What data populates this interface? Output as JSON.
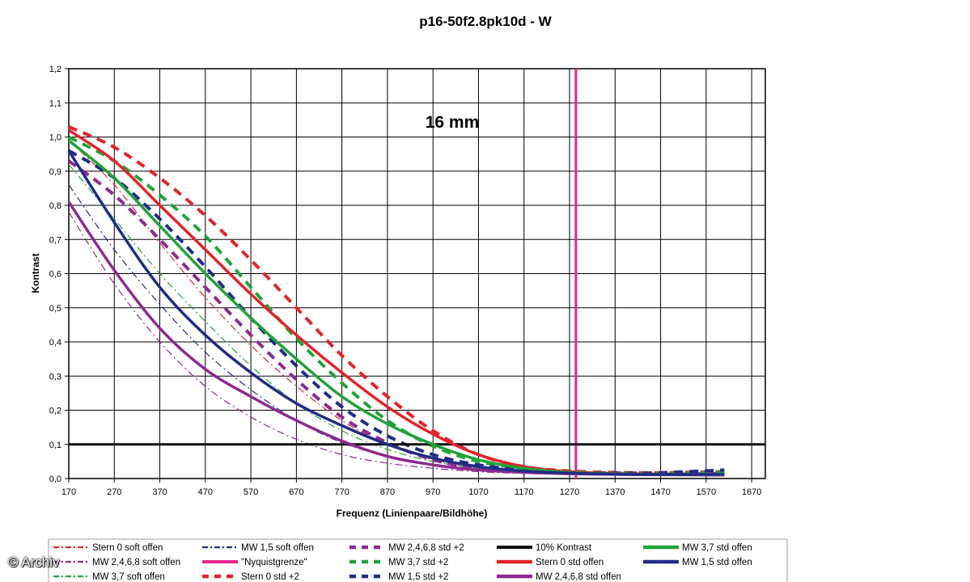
{
  "chart_data": {
    "type": "line",
    "title": "p16-50f2.8pk10d - W",
    "annotation": "16 mm",
    "xlabel": "Frequenz (Linienpaare/Bildhöhe)",
    "ylabel": "Kontrast",
    "xlim": [
      170,
      1700
    ],
    "ylim": [
      0,
      1.2
    ],
    "xticks": [
      170,
      270,
      370,
      470,
      570,
      670,
      770,
      870,
      970,
      1070,
      1170,
      1270,
      1370,
      1470,
      1570,
      1670
    ],
    "yticks": [
      "0,0",
      "0,1",
      "0,2",
      "0,3",
      "0,4",
      "0,5",
      "0,6",
      "0,7",
      "0,8",
      "0,9",
      "1,0",
      "1,1",
      "1,2"
    ],
    "grid": true,
    "legend_position": "bottom",
    "series": [
      {
        "name": "Stern 0 soft offen",
        "color": "#e0252b",
        "style": "dashdot",
        "width": 1.2,
        "x": [
          170,
          270,
          370,
          470,
          570,
          670,
          770,
          870,
          970,
          1070,
          1170,
          1270,
          1370,
          1470,
          1610
        ],
        "y": [
          0.99,
          0.86,
          0.69,
          0.53,
          0.39,
          0.27,
          0.17,
          0.1,
          0.055,
          0.03,
          0.02,
          0.015,
          0.012,
          0.01,
          0.01
        ]
      },
      {
        "name": "MW 2,4,6,8 soft offen",
        "color": "#8e2a91",
        "style": "dashdot",
        "width": 1.2,
        "x": [
          170,
          270,
          370,
          470,
          570,
          670,
          770,
          870,
          970,
          1070,
          1170,
          1270,
          1370,
          1470,
          1610
        ],
        "y": [
          0.78,
          0.57,
          0.4,
          0.27,
          0.18,
          0.115,
          0.07,
          0.045,
          0.03,
          0.02,
          0.015,
          0.012,
          0.01,
          0.01,
          0.01
        ]
      },
      {
        "name": "MW 3,7 soft offen",
        "color": "#22a33a",
        "style": "dashdot",
        "width": 1.2,
        "x": [
          170,
          270,
          370,
          470,
          570,
          670,
          770,
          870,
          970,
          1070,
          1170,
          1270,
          1370,
          1470,
          1610
        ],
        "y": [
          0.92,
          0.76,
          0.6,
          0.46,
          0.33,
          0.22,
          0.14,
          0.085,
          0.05,
          0.03,
          0.02,
          0.015,
          0.012,
          0.01,
          0.01
        ]
      },
      {
        "name": "MW 1,5 soft offen",
        "color": "#1f2d87",
        "style": "dashdot",
        "width": 1.2,
        "x": [
          170,
          270,
          370,
          470,
          570,
          670,
          770,
          870,
          970,
          1070,
          1170,
          1270,
          1370,
          1470,
          1610
        ],
        "y": [
          0.86,
          0.67,
          0.51,
          0.37,
          0.26,
          0.17,
          0.105,
          0.065,
          0.04,
          0.025,
          0.018,
          0.014,
          0.012,
          0.01,
          0.01
        ]
      },
      {
        "name": "\"Nyquistgrenze\"",
        "color": "#e5258f",
        "style": "solid",
        "width": 3,
        "x": [
          1284,
          1284
        ],
        "y": [
          0,
          1.2
        ]
      },
      {
        "name": "Stern 0 std +2",
        "color": "#e0252b",
        "style": "dash",
        "width": 4,
        "x": [
          170,
          270,
          370,
          470,
          570,
          670,
          770,
          870,
          970,
          1070,
          1170,
          1270,
          1370,
          1470,
          1610
        ],
        "y": [
          1.03,
          0.97,
          0.88,
          0.77,
          0.64,
          0.5,
          0.36,
          0.24,
          0.14,
          0.07,
          0.035,
          0.022,
          0.018,
          0.017,
          0.02
        ]
      },
      {
        "name": "MW 2,4,6,8 std +2",
        "color": "#8e2a91",
        "style": "dash",
        "width": 4,
        "x": [
          170,
          270,
          370,
          470,
          570,
          670,
          770,
          870,
          970,
          1070,
          1170,
          1270,
          1370,
          1470,
          1610
        ],
        "y": [
          0.93,
          0.83,
          0.7,
          0.56,
          0.42,
          0.29,
          0.18,
          0.105,
          0.055,
          0.03,
          0.02,
          0.015,
          0.013,
          0.012,
          0.015
        ]
      },
      {
        "name": "MW 3,7 std +2",
        "color": "#22a33a",
        "style": "dash",
        "width": 4,
        "x": [
          170,
          270,
          370,
          470,
          570,
          670,
          770,
          870,
          970,
          1070,
          1170,
          1270,
          1370,
          1470,
          1610
        ],
        "y": [
          1.0,
          0.93,
          0.83,
          0.71,
          0.56,
          0.41,
          0.28,
          0.17,
          0.095,
          0.05,
          0.03,
          0.02,
          0.016,
          0.015,
          0.018
        ]
      },
      {
        "name": "MW 1,5 std +2",
        "color": "#1f2d87",
        "style": "dash",
        "width": 4,
        "x": [
          170,
          270,
          370,
          470,
          570,
          670,
          770,
          870,
          970,
          1070,
          1170,
          1270,
          1370,
          1470,
          1610
        ],
        "y": [
          0.96,
          0.88,
          0.76,
          0.62,
          0.47,
          0.33,
          0.21,
          0.125,
          0.07,
          0.04,
          0.025,
          0.018,
          0.016,
          0.017,
          0.025
        ]
      },
      {
        "name": "10% Kontrast",
        "color": "#111111",
        "style": "solid",
        "width": 3,
        "x": [
          170,
          1700
        ],
        "y": [
          0.1,
          0.1
        ]
      },
      {
        "name": "Stern 0 std offen",
        "color": "#e0252b",
        "style": "solid",
        "width": 3.5,
        "x": [
          170,
          270,
          370,
          470,
          570,
          670,
          770,
          870,
          970,
          1070,
          1170,
          1270,
          1370,
          1470,
          1610
        ],
        "y": [
          1.02,
          0.93,
          0.8,
          0.67,
          0.54,
          0.42,
          0.31,
          0.21,
          0.13,
          0.07,
          0.035,
          0.02,
          0.015,
          0.013,
          0.012
        ]
      },
      {
        "name": "MW 2,4,6,8 std offen",
        "color": "#8e2a91",
        "style": "solid",
        "width": 3.5,
        "x": [
          170,
          270,
          370,
          470,
          570,
          670,
          770,
          870,
          970,
          1070,
          1170,
          1270,
          1370,
          1470,
          1610
        ],
        "y": [
          0.81,
          0.61,
          0.44,
          0.32,
          0.24,
          0.17,
          0.11,
          0.065,
          0.04,
          0.025,
          0.018,
          0.014,
          0.012,
          0.011,
          0.01
        ]
      },
      {
        "name": "MW 3,7 std offen",
        "color": "#22a33a",
        "style": "solid",
        "width": 3.5,
        "x": [
          170,
          270,
          370,
          470,
          570,
          670,
          770,
          870,
          970,
          1070,
          1170,
          1270,
          1370,
          1470,
          1610
        ],
        "y": [
          0.99,
          0.88,
          0.74,
          0.6,
          0.47,
          0.35,
          0.24,
          0.16,
          0.1,
          0.055,
          0.03,
          0.018,
          0.014,
          0.012,
          0.012
        ]
      },
      {
        "name": "MW 1,5 std offen",
        "color": "#1f2d87",
        "style": "solid",
        "width": 3.5,
        "x": [
          170,
          270,
          370,
          470,
          570,
          670,
          770,
          870,
          970,
          1070,
          1170,
          1270,
          1370,
          1470,
          1610
        ],
        "y": [
          0.96,
          0.75,
          0.56,
          0.42,
          0.31,
          0.22,
          0.155,
          0.1,
          0.06,
          0.035,
          0.022,
          0.016,
          0.013,
          0.012,
          0.012
        ]
      }
    ]
  },
  "watermark": "© Archiv"
}
